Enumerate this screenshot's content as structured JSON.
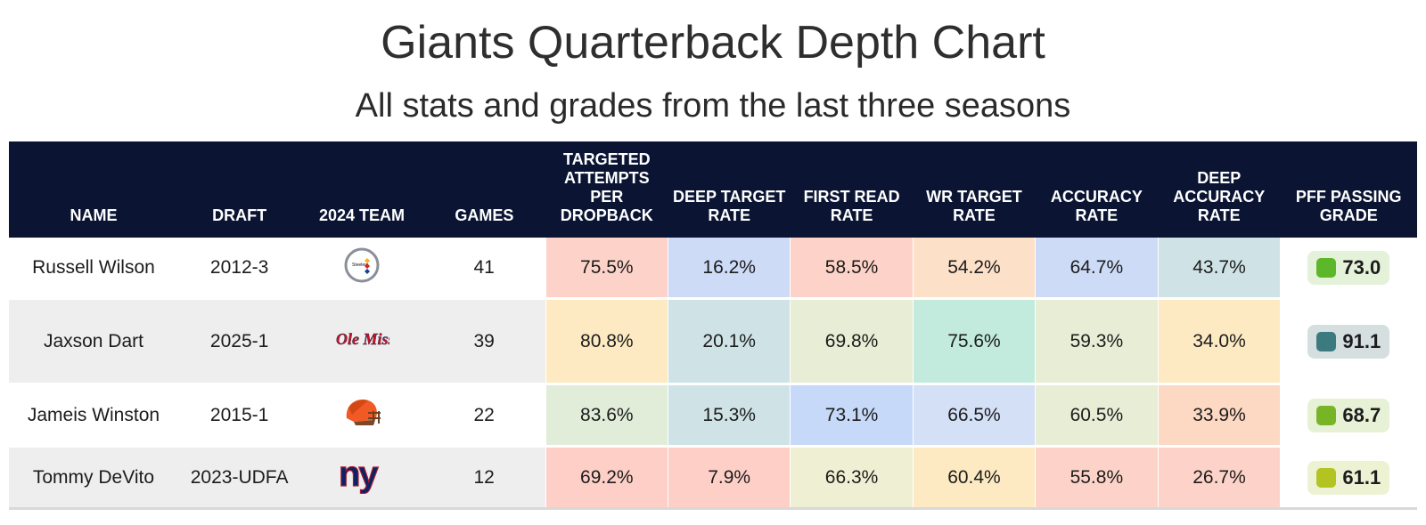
{
  "title": "Giants Quarterback Depth Chart",
  "subtitle": "All stats and grades from the last three seasons",
  "columns": [
    "NAME",
    "DRAFT",
    "2024 TEAM",
    "GAMES",
    "TARGETED ATTEMPTS PER DROPBACK",
    "DEEP TARGET RATE",
    "FIRST READ RATE",
    "WR TARGET RATE",
    "ACCURACY RATE",
    "DEEP ACCURACY RATE",
    "PFF PASSING GRADE"
  ],
  "chart_data": {
    "type": "table",
    "title": "Giants Quarterback Depth Chart",
    "subtitle": "All stats and grades from the last three seasons",
    "rows": [
      {
        "name": "Russell Wilson",
        "draft": "2012-3",
        "team_logo": "steelers-logo",
        "games": "41",
        "stats": [
          "75.5%",
          "16.2%",
          "58.5%",
          "54.2%",
          "64.7%",
          "43.7%"
        ],
        "stat_colors": [
          "#fdd3c9",
          "#cddbf7",
          "#fdd3c9",
          "#fde0c8",
          "#cddbf7",
          "#cfe3e6"
        ],
        "grade": "73.0",
        "grade_color": "#5cb82a",
        "grade_bg": "#e3f2d8"
      },
      {
        "name": "Jaxson Dart",
        "draft": "2025-1",
        "team_logo": "ole-miss-logo",
        "team_text": "Ole Miss",
        "games": "39",
        "stats": [
          "80.8%",
          "20.1%",
          "69.8%",
          "75.6%",
          "59.3%",
          "34.0%"
        ],
        "stat_colors": [
          "#fdeac2",
          "#cfe3e6",
          "#e8edd5",
          "#c2ebdd",
          "#e8edd5",
          "#fdeac2"
        ],
        "grade": "91.1",
        "grade_color": "#3b7b80",
        "grade_bg": "#d5dfe0"
      },
      {
        "name": "Jameis Winston",
        "draft": "2015-1",
        "team_logo": "browns-helmet-logo",
        "games": "22",
        "stats": [
          "83.6%",
          "15.3%",
          "73.1%",
          "66.5%",
          "60.5%",
          "33.9%"
        ],
        "stat_colors": [
          "#e1ecd9",
          "#cfe3e6",
          "#c6d9f8",
          "#d4e0f6",
          "#e8edd5",
          "#fdd8c2"
        ],
        "grade": "68.7",
        "grade_color": "#78b526",
        "grade_bg": "#e6f1d6"
      },
      {
        "name": "Tommy DeVito",
        "draft": "2023-UDFA",
        "team_logo": "giants-ny-logo",
        "games": "12",
        "stats": [
          "69.2%",
          "7.9%",
          "66.3%",
          "60.4%",
          "55.8%",
          "26.7%"
        ],
        "stat_colors": [
          "#fdcfc7",
          "#fdcfc7",
          "#eff0d3",
          "#fdeac2",
          "#fdd3c9",
          "#fdd3c9"
        ],
        "grade": "61.1",
        "grade_color": "#b3c422",
        "grade_bg": "#edf2d3"
      }
    ]
  }
}
